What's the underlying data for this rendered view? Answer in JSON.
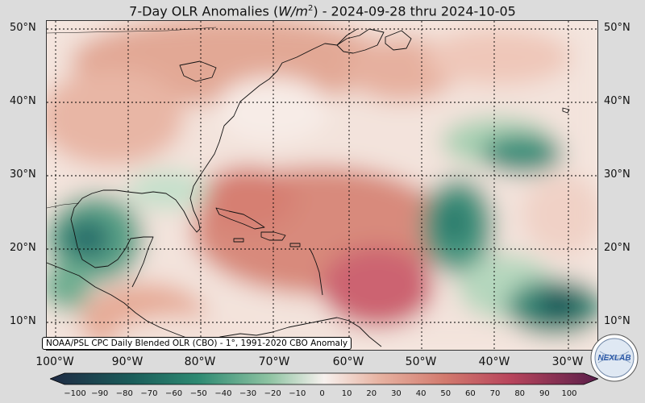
{
  "title": {
    "prefix": "7-Day OLR Anomalies (",
    "unit_base": "W/m",
    "unit_exp": "2",
    "suffix": ") - 2024-09-28 thru 2024-10-05"
  },
  "caption": "NOAA/PSL CPC Daily Blended OLR (CBO) - 1°, 1991-2020 CBO Anomaly",
  "logo_text": "NEXLAB",
  "latitude_labels": [
    "50°N",
    "40°N",
    "30°N",
    "20°N",
    "10°N"
  ],
  "longitude_labels": [
    "100°W",
    "90°W",
    "80°W",
    "70°W",
    "60°W",
    "50°W",
    "40°W",
    "30°W"
  ],
  "colorbar": {
    "ticks": [
      "−100",
      "−90",
      "−80",
      "−70",
      "−60",
      "−50",
      "−40",
      "−30",
      "−20",
      "−10",
      "0",
      "10",
      "20",
      "30",
      "40",
      "50",
      "60",
      "70",
      "80",
      "90",
      "100"
    ],
    "colors": {
      "min": "#1f2a44",
      "cool_dark": "#1a5d5a",
      "cool_mid": "#2e8a72",
      "cool_light": "#8ec3a2",
      "neutral": "#f7f1ee",
      "warm_light": "#e7b3a2",
      "warm_mid": "#d27a6e",
      "warm_dark": "#b8455c",
      "max": "#5a1e4a"
    }
  },
  "map": {
    "extent": {
      "lon": [
        -101,
        -25
      ],
      "lat": [
        6,
        51
      ]
    },
    "colors": {
      "background": "#f6e9e2",
      "land_outline": "#111111",
      "grid": "#000000"
    }
  }
}
